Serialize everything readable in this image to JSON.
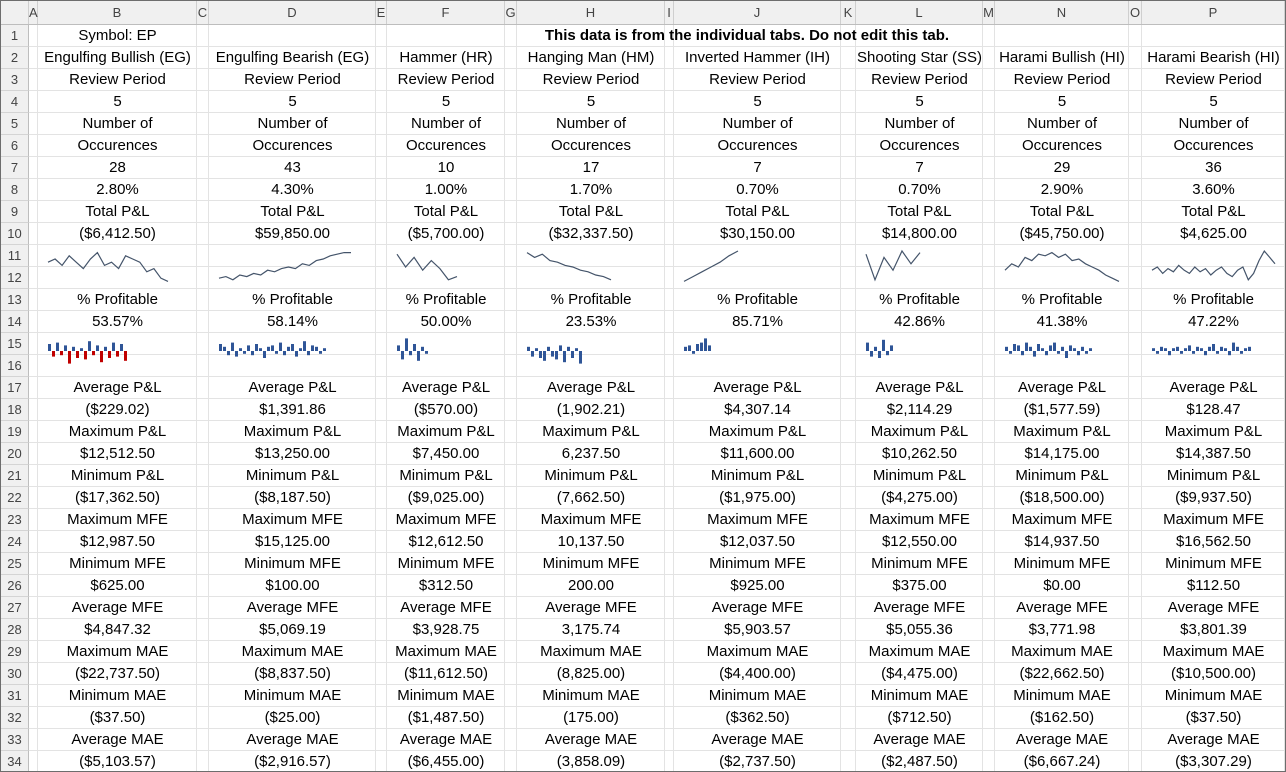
{
  "sheet": {
    "column_letters": [
      "A",
      "B",
      "C",
      "D",
      "E",
      "F",
      "G",
      "H",
      "I",
      "J",
      "K",
      "L",
      "M",
      "N",
      "O",
      "P"
    ],
    "row_numbers": [
      "1",
      "2",
      "3",
      "4",
      "5",
      "6",
      "7",
      "8",
      "9",
      "10",
      "11",
      "12",
      "13",
      "14",
      "15",
      "16",
      "17",
      "18",
      "19",
      "20",
      "21",
      "22",
      "23",
      "24",
      "25",
      "26",
      "27",
      "28",
      "29",
      "30",
      "31",
      "32",
      "33",
      "34"
    ],
    "symbol_label": "Symbol: EP",
    "banner": "This data is from the individual tabs. Do not edit this tab.",
    "colors": {
      "line": "#44546a",
      "bar_positive": "#2f5597",
      "bar_negative": "#c00000",
      "header_bg": "#f0f0f0",
      "selected_col": "#217346"
    }
  },
  "patterns": [
    {
      "name": "Engulfing Bullish (EG)",
      "review_label": "Review Period",
      "review_value": "5",
      "occ_label1": "Number of",
      "occ_label2": "Occurences",
      "occ_count": "28",
      "occ_pct": "2.80%",
      "total_label": "Total P&L",
      "total_value": "($6,412.50)",
      "line_shape": [
        0.35,
        0.25,
        0.45,
        0.15,
        0.35,
        0.55,
        0.25,
        0.05,
        0.45,
        0.35,
        0.55,
        0.15,
        0.25,
        0.35,
        0.65,
        0.55,
        0.85,
        0.95
      ],
      "pct_label": "% Profitable",
      "pct_value": "53.57%",
      "bars": [
        0.5,
        -0.4,
        0.6,
        -0.3,
        0.4,
        -0.9,
        0.3,
        -0.5,
        0.2,
        -0.6,
        0.7,
        -0.3,
        0.4,
        -0.8,
        0.3,
        -0.5,
        0.6,
        -0.4,
        0.5,
        -0.7
      ],
      "stats": [
        [
          "Average P&L",
          "($229.02)"
        ],
        [
          "Maximum P&L",
          "$12,512.50"
        ],
        [
          "Minimum P&L",
          "($17,362.50)"
        ],
        [
          "Maximum MFE",
          "$12,987.50"
        ],
        [
          "Minimum MFE",
          "$625.00"
        ],
        [
          "Average MFE",
          "$4,847.32"
        ],
        [
          "Maximum MAE",
          "($22,737.50)"
        ],
        [
          "Minimum MAE",
          "($37.50)"
        ],
        [
          "Average MAE",
          "($5,103.57)"
        ]
      ]
    },
    {
      "name": "Engulfing Bearish (EG)",
      "review_label": "Review Period",
      "review_value": "5",
      "occ_label1": "Number of",
      "occ_label2": "Occurences",
      "occ_count": "43",
      "occ_pct": "4.30%",
      "total_label": "Total P&L",
      "total_value": "$59,850.00",
      "line_shape": [
        0.85,
        0.8,
        0.9,
        0.75,
        0.8,
        0.7,
        0.75,
        0.6,
        0.65,
        0.55,
        0.5,
        0.55,
        0.4,
        0.45,
        0.3,
        0.25,
        0.15,
        0.1,
        0.05,
        0.05
      ],
      "pct_label": "% Profitable",
      "pct_value": "58.14%",
      "bars": [
        0.5,
        0.3,
        -0.3,
        0.6,
        -0.4,
        0.2,
        -0.2,
        0.4,
        -0.3,
        0.5,
        0.2,
        -0.5,
        0.3,
        0.4,
        -0.2,
        0.6,
        -0.3,
        0.3,
        0.5,
        -0.4,
        0.2,
        0.7,
        -0.3,
        0.4,
        0.3,
        -0.2,
        0.2
      ],
      "stats": [
        [
          "Average P&L",
          "$1,391.86"
        ],
        [
          "Maximum P&L",
          "$13,250.00"
        ],
        [
          "Minimum P&L",
          "($8,187.50)"
        ],
        [
          "Maximum MFE",
          "$15,125.00"
        ],
        [
          "Minimum MFE",
          "$100.00"
        ],
        [
          "Average MFE",
          "$5,069.19"
        ],
        [
          "Maximum MAE",
          "($8,837.50)"
        ],
        [
          "Minimum MAE",
          "($25.00)"
        ],
        [
          "Average MAE",
          "($2,916.57)"
        ]
      ]
    },
    {
      "name": "Hammer (HR)",
      "review_label": "Review Period",
      "review_value": "5",
      "occ_label1": "Number of",
      "occ_label2": "Occurences",
      "occ_count": "10",
      "occ_pct": "1.00%",
      "total_label": "Total P&L",
      "total_value": "($5,700.00)",
      "line_shape": [
        0.1,
        0.5,
        0.2,
        0.6,
        0.3,
        0.55,
        0.9,
        0.8
      ],
      "pct_label": "% Profitable",
      "pct_value": "50.00%",
      "bars": [
        0.4,
        -0.6,
        0.9,
        -0.3,
        0.5,
        -0.7,
        0.3,
        -0.2
      ],
      "stats": [
        [
          "Average P&L",
          "($570.00)"
        ],
        [
          "Maximum P&L",
          "$7,450.00"
        ],
        [
          "Minimum P&L",
          "($9,025.00)"
        ],
        [
          "Maximum MFE",
          "$12,612.50"
        ],
        [
          "Minimum MFE",
          "$312.50"
        ],
        [
          "Average MFE",
          "$3,928.75"
        ],
        [
          "Maximum MAE",
          "($11,612.50)"
        ],
        [
          "Minimum MAE",
          "($1,487.50)"
        ],
        [
          "Average MAE",
          "($6,455.00)"
        ]
      ]
    },
    {
      "name": "Hanging Man (HM)",
      "review_label": "Review Period",
      "review_value": "5",
      "occ_label1": "Number of",
      "occ_label2": "Occurences",
      "occ_count": "17",
      "occ_pct": "1.70%",
      "total_label": "Total P&L",
      "total_value": "($32,337.50)",
      "line_shape": [
        0.05,
        0.2,
        0.1,
        0.3,
        0.35,
        0.45,
        0.5,
        0.6,
        0.65,
        0.75,
        0.8,
        0.9
      ],
      "pct_label": "% Profitable",
      "pct_value": "23.53%",
      "bars": [
        0.3,
        -0.4,
        0.2,
        -0.5,
        -0.7,
        0.3,
        -0.4,
        -0.6,
        0.4,
        -0.8,
        0.3,
        -0.5,
        0.2,
        -0.9
      ],
      "stats": [
        [
          "Average P&L",
          "(1,902.21)"
        ],
        [
          "Maximum P&L",
          "6,237.50"
        ],
        [
          "Minimum P&L",
          "(7,662.50)"
        ],
        [
          "Maximum MFE",
          "10,137.50"
        ],
        [
          "Minimum MFE",
          "200.00"
        ],
        [
          "Average MFE",
          "3,175.74"
        ],
        [
          "Maximum MAE",
          "(8,825.00)"
        ],
        [
          "Minimum MAE",
          "(175.00)"
        ],
        [
          "Average MAE",
          "(3,858.09)"
        ]
      ]
    },
    {
      "name": "Inverted Hammer (IH)",
      "review_label": "Review Period",
      "review_value": "5",
      "occ_label1": "Number of",
      "occ_label2": "Occurences",
      "occ_count": "7",
      "occ_pct": "0.70%",
      "total_label": "Total P&L",
      "total_value": "$30,150.00",
      "line_shape": [
        0.95,
        0.8,
        0.65,
        0.5,
        0.35,
        0.15,
        0.0
      ],
      "pct_label": "% Profitable",
      "pct_value": "85.71%",
      "bars": [
        0.3,
        0.4,
        -0.2,
        0.5,
        0.6,
        0.9,
        0.4
      ],
      "stats": [
        [
          "Average P&L",
          "$4,307.14"
        ],
        [
          "Maximum P&L",
          "$11,600.00"
        ],
        [
          "Minimum P&L",
          "($1,975.00)"
        ],
        [
          "Maximum MFE",
          "$12,037.50"
        ],
        [
          "Minimum MFE",
          "$925.00"
        ],
        [
          "Average MFE",
          "$5,903.57"
        ],
        [
          "Maximum MAE",
          "($4,400.00)"
        ],
        [
          "Minimum MAE",
          "($362.50)"
        ],
        [
          "Average MAE",
          "($2,737.50)"
        ]
      ]
    },
    {
      "name": "Shooting Star (SS)",
      "review_label": "Review Period",
      "review_value": "5",
      "occ_label1": "Number of",
      "occ_label2": "Occurences",
      "occ_count": "7",
      "occ_pct": "0.70%",
      "total_label": "Total P&L",
      "total_value": "$14,800.00",
      "line_shape": [
        0.1,
        0.9,
        0.2,
        0.6,
        0.0,
        0.4,
        0.05
      ],
      "pct_label": "% Profitable",
      "pct_value": "42.86%",
      "bars": [
        0.6,
        -0.4,
        0.3,
        -0.5,
        0.8,
        -0.3,
        0.4
      ],
      "stats": [
        [
          "Average P&L",
          "$2,114.29"
        ],
        [
          "Maximum P&L",
          "$10,262.50"
        ],
        [
          "Minimum P&L",
          "($4,275.00)"
        ],
        [
          "Maximum MFE",
          "$12,550.00"
        ],
        [
          "Minimum MFE",
          "$375.00"
        ],
        [
          "Average MFE",
          "$5,055.36"
        ],
        [
          "Maximum MAE",
          "($4,475.00)"
        ],
        [
          "Minimum MAE",
          "($712.50)"
        ],
        [
          "Average MAE",
          "($2,487.50)"
        ]
      ]
    },
    {
      "name": "Harami Bullish (HI)",
      "review_label": "Review Period",
      "review_value": "5",
      "occ_label1": "Number of",
      "occ_label2": "Occurences",
      "occ_count": "29",
      "occ_pct": "2.90%",
      "total_label": "Total P&L",
      "total_value": "($45,750.00)",
      "line_shape": [
        0.6,
        0.4,
        0.5,
        0.2,
        0.3,
        0.1,
        0.15,
        0.05,
        0.2,
        0.1,
        0.3,
        0.25,
        0.4,
        0.5,
        0.6,
        0.75,
        0.85,
        0.95
      ],
      "pct_label": "% Profitable",
      "pct_value": "41.38%",
      "bars": [
        0.3,
        -0.2,
        0.5,
        0.4,
        -0.3,
        0.6,
        0.3,
        -0.4,
        0.5,
        0.2,
        -0.3,
        0.4,
        0.6,
        -0.2,
        0.3,
        -0.5,
        0.4,
        0.2,
        -0.3,
        0.3,
        -0.2,
        0.2
      ],
      "stats": [
        [
          "Average P&L",
          "($1,577.59)"
        ],
        [
          "Maximum P&L",
          "$14,175.00"
        ],
        [
          "Minimum P&L",
          "($18,500.00)"
        ],
        [
          "Maximum MFE",
          "$14,937.50"
        ],
        [
          "Minimum MFE",
          "$0.00"
        ],
        [
          "Average MFE",
          "$3,771.98"
        ],
        [
          "Maximum MAE",
          "($22,662.50)"
        ],
        [
          "Minimum MAE",
          "($162.50)"
        ],
        [
          "Average MAE",
          "($6,667.24)"
        ]
      ]
    },
    {
      "name": "Harami Bearish (HI)",
      "review_label": "Review Period",
      "review_value": "5",
      "occ_label1": "Number of",
      "occ_label2": "Occurences",
      "occ_count": "36",
      "occ_pct": "3.60%",
      "total_label": "Total P&L",
      "total_value": "$4,625.00",
      "line_shape": [
        0.6,
        0.5,
        0.7,
        0.55,
        0.65,
        0.45,
        0.6,
        0.7,
        0.5,
        0.65,
        0.55,
        0.75,
        0.6,
        0.5,
        0.7,
        0.8,
        0.6,
        0.5,
        0.9,
        0.7,
        0.3,
        0.0,
        0.2,
        0.4
      ],
      "pct_label": "% Profitable",
      "pct_value": "47.22%",
      "bars": [
        0.2,
        -0.2,
        0.3,
        0.2,
        -0.3,
        0.2,
        0.3,
        -0.2,
        0.2,
        0.4,
        -0.2,
        0.3,
        0.2,
        -0.3,
        0.3,
        0.5,
        -0.2,
        0.3,
        0.2,
        -0.3,
        0.6,
        0.3,
        -0.2,
        0.2,
        0.3
      ],
      "stats": [
        [
          "Average P&L",
          "$128.47"
        ],
        [
          "Maximum P&L",
          "$14,387.50"
        ],
        [
          "Minimum P&L",
          "($9,937.50)"
        ],
        [
          "Maximum MFE",
          "$16,562.50"
        ],
        [
          "Minimum MFE",
          "$112.50"
        ],
        [
          "Average MFE",
          "$3,801.39"
        ],
        [
          "Maximum MAE",
          "($10,500.00)"
        ],
        [
          "Minimum MAE",
          "($37.50)"
        ],
        [
          "Average MAE",
          "($3,307.29)"
        ]
      ]
    }
  ]
}
